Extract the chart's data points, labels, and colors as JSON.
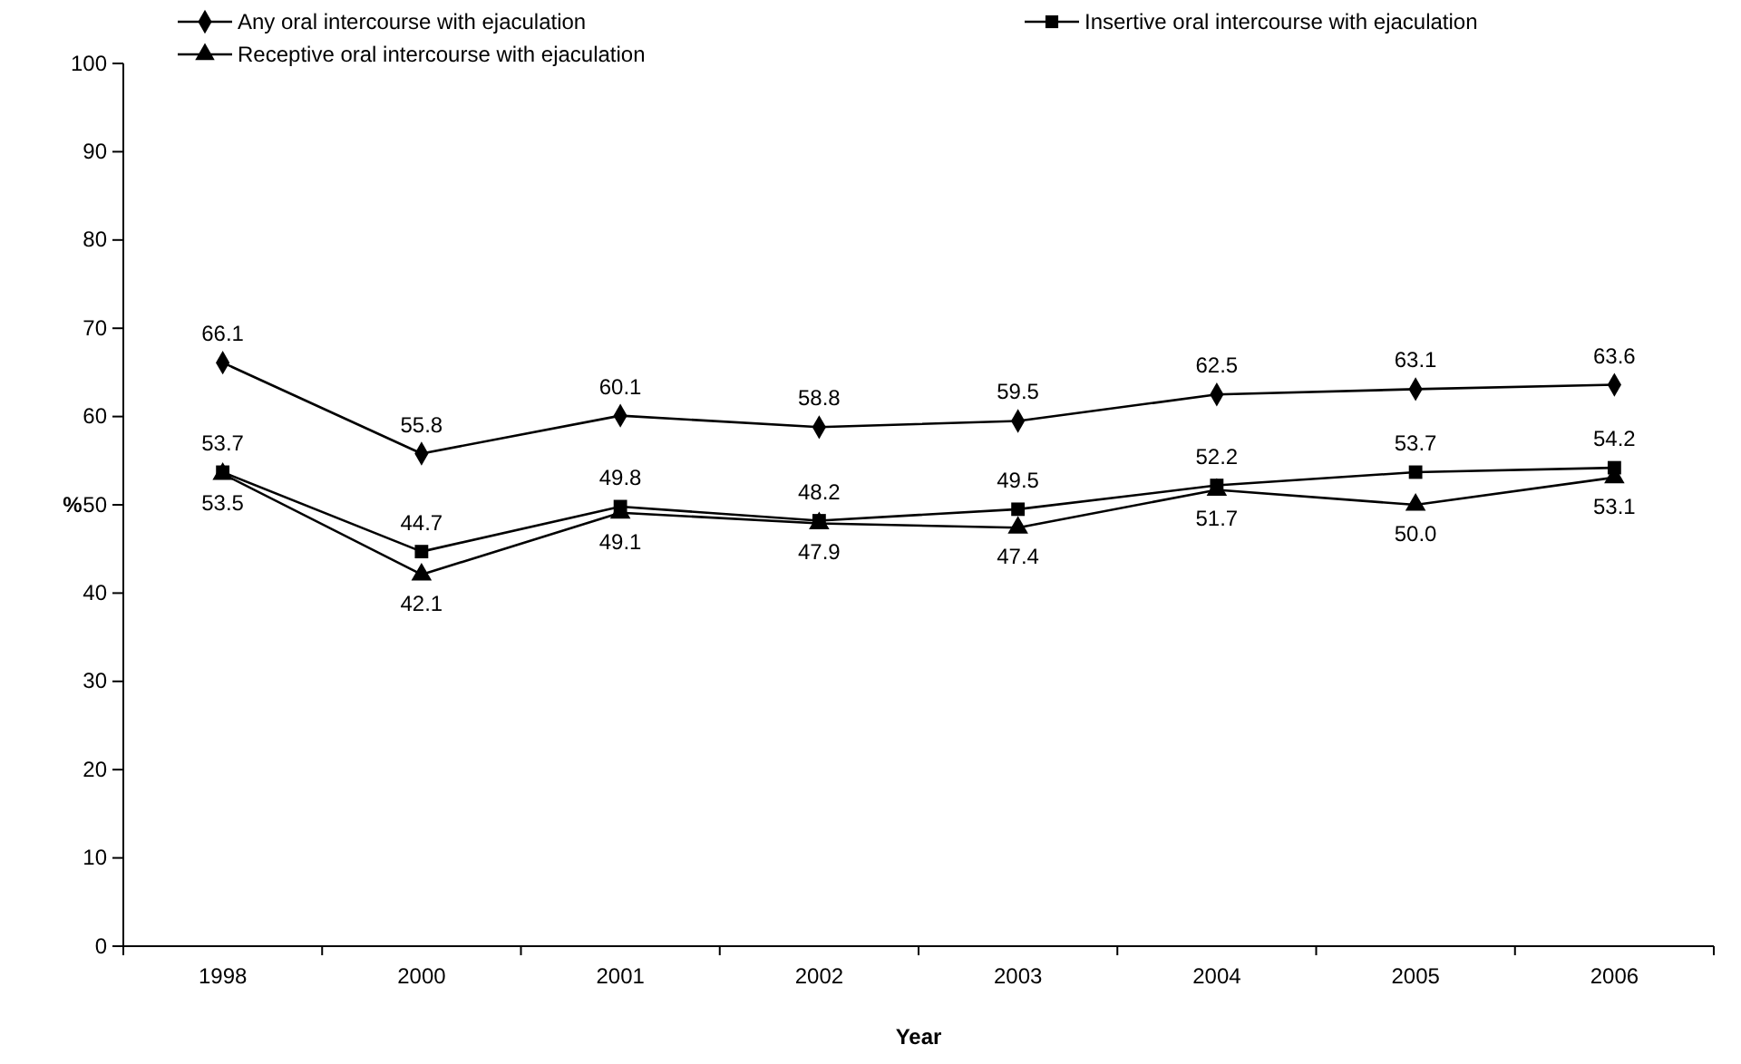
{
  "chart_data": {
    "type": "line",
    "xlabel": "Year",
    "ylabel": "%",
    "categories": [
      "1998",
      "2000",
      "2001",
      "2002",
      "2003",
      "2004",
      "2005",
      "2006"
    ],
    "series": [
      {
        "name": "Any oral intercourse with ejaculation",
        "color": "#000000",
        "marker": "diamond",
        "values": [
          66.1,
          55.8,
          60.1,
          58.8,
          59.5,
          62.5,
          63.1,
          63.6
        ]
      },
      {
        "name": "Insertive oral intercourse with ejaculation",
        "color": "#000000",
        "marker": "square",
        "values": [
          53.7,
          44.7,
          49.8,
          48.2,
          49.5,
          52.2,
          53.7,
          54.2
        ]
      },
      {
        "name": "Receptive oral intercourse with ejaculation",
        "color": "#000000",
        "marker": "triangle",
        "values": [
          53.5,
          42.1,
          49.1,
          47.9,
          47.4,
          51.7,
          50.0,
          53.1
        ],
        "value_labels": [
          "53.5",
          "42.1",
          "49.1",
          "47.9",
          "47.4",
          "51.7",
          "50.0",
          "53.1"
        ]
      }
    ],
    "ylim": [
      0,
      100
    ],
    "yticks": [
      0,
      10,
      20,
      30,
      40,
      50,
      60,
      70,
      80,
      90,
      100
    ],
    "data_labels": true,
    "legend": "top",
    "grid": false,
    "line_style": "solid"
  }
}
